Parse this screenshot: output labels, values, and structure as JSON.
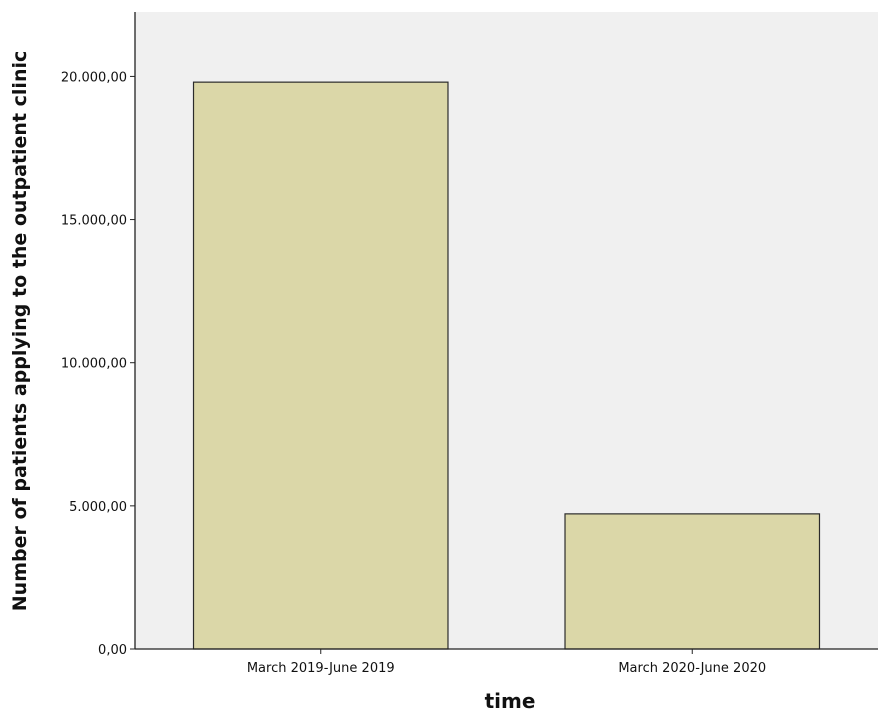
{
  "chart_data": {
    "type": "bar",
    "categories": [
      "March 2019-June 2019",
      "March 2020-June 2020"
    ],
    "values": [
      19800,
      4720
    ],
    "xlabel": "time",
    "ylabel": "Number of patients applying to the outpatient clinic",
    "ylim": [
      0,
      22250
    ],
    "yticks": [
      0,
      5000,
      10000,
      15000,
      20000
    ],
    "ytick_labels": [
      "0,00",
      "5.000,00",
      "10.000,00",
      "15.000,00",
      "20.000,00"
    ],
    "grid": false,
    "legend": "none",
    "colors": {
      "plot_background": "#f0f0f0",
      "bar_fill": "#dbd7a8",
      "bar_stroke": "#2b2b2b",
      "axis": "#222222"
    }
  }
}
